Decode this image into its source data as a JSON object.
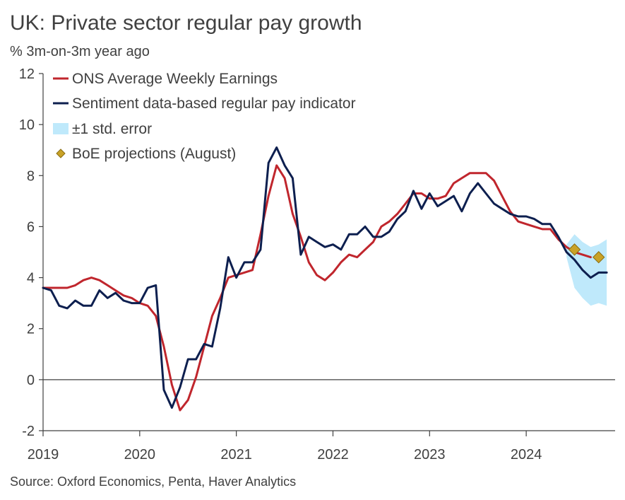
{
  "title": "UK: Private sector regular pay growth",
  "subtitle": "% 3m-on-3m year ago",
  "source": "Source: Oxford Economics, Penta, Haver Analytics",
  "colors": {
    "ons": "#c0262d",
    "sentiment": "#0d1f4f",
    "band": "#bfe9fb",
    "boe": "#c9a227",
    "axis": "#404040"
  },
  "chart_data": {
    "type": "line",
    "xlabel": "",
    "ylabel": "",
    "ylim": [
      -2,
      12
    ],
    "xlim": [
      2019.0,
      2024.92
    ],
    "y_ticks": [
      "-2",
      "0",
      "2",
      "4",
      "6",
      "8",
      "10",
      "12"
    ],
    "x_ticks": [
      "2019",
      "2020",
      "2021",
      "2022",
      "2023",
      "2024"
    ],
    "legend_position": "top-left",
    "legend": [
      "ONS Average Weekly Earnings",
      "Sentiment data-based regular pay indicator",
      "±1 std. error",
      "BoE projections (August)"
    ],
    "series": [
      {
        "name": "ONS Average Weekly Earnings",
        "points": [
          [
            2019.0,
            3.6
          ],
          [
            2019.083,
            3.6
          ],
          [
            2019.167,
            3.6
          ],
          [
            2019.25,
            3.6
          ],
          [
            2019.333,
            3.7
          ],
          [
            2019.417,
            3.9
          ],
          [
            2019.5,
            4.0
          ],
          [
            2019.583,
            3.9
          ],
          [
            2019.667,
            3.7
          ],
          [
            2019.75,
            3.5
          ],
          [
            2019.833,
            3.3
          ],
          [
            2019.917,
            3.2
          ],
          [
            2020.0,
            3.0
          ],
          [
            2020.083,
            2.9
          ],
          [
            2020.167,
            2.5
          ],
          [
            2020.25,
            1.3
          ],
          [
            2020.333,
            -0.2
          ],
          [
            2020.417,
            -1.2
          ],
          [
            2020.5,
            -0.8
          ],
          [
            2020.583,
            0.1
          ],
          [
            2020.667,
            1.3
          ],
          [
            2020.75,
            2.5
          ],
          [
            2020.833,
            3.2
          ],
          [
            2020.917,
            4.0
          ],
          [
            2021.0,
            4.1
          ],
          [
            2021.083,
            4.2
          ],
          [
            2021.167,
            4.3
          ],
          [
            2021.25,
            5.7
          ],
          [
            2021.333,
            7.2
          ],
          [
            2021.417,
            8.4
          ],
          [
            2021.5,
            7.9
          ],
          [
            2021.583,
            6.5
          ],
          [
            2021.667,
            5.6
          ],
          [
            2021.75,
            4.6
          ],
          [
            2021.833,
            4.1
          ],
          [
            2021.917,
            3.9
          ],
          [
            2022.0,
            4.2
          ],
          [
            2022.083,
            4.6
          ],
          [
            2022.167,
            4.9
          ],
          [
            2022.25,
            4.8
          ],
          [
            2022.333,
            5.1
          ],
          [
            2022.417,
            5.4
          ],
          [
            2022.5,
            6.0
          ],
          [
            2022.583,
            6.2
          ],
          [
            2022.667,
            6.5
          ],
          [
            2022.75,
            6.9
          ],
          [
            2022.833,
            7.3
          ],
          [
            2022.917,
            7.3
          ],
          [
            2023.0,
            7.1
          ],
          [
            2023.083,
            7.1
          ],
          [
            2023.167,
            7.2
          ],
          [
            2023.25,
            7.7
          ],
          [
            2023.333,
            7.9
          ],
          [
            2023.417,
            8.1
          ],
          [
            2023.5,
            8.1
          ],
          [
            2023.583,
            8.1
          ],
          [
            2023.667,
            7.8
          ],
          [
            2023.75,
            7.2
          ],
          [
            2023.833,
            6.6
          ],
          [
            2023.917,
            6.2
          ],
          [
            2024.0,
            6.1
          ],
          [
            2024.083,
            6.0
          ],
          [
            2024.167,
            5.9
          ],
          [
            2024.25,
            5.9
          ],
          [
            2024.333,
            5.5
          ],
          [
            2024.417,
            5.2
          ],
          [
            2024.5,
            5.0
          ],
          [
            2024.583,
            4.9
          ],
          [
            2024.667,
            4.8
          ]
        ]
      },
      {
        "name": "Sentiment data-based regular pay indicator",
        "points": [
          [
            2019.0,
            3.6
          ],
          [
            2019.083,
            3.5
          ],
          [
            2019.167,
            2.9
          ],
          [
            2019.25,
            2.8
          ],
          [
            2019.333,
            3.1
          ],
          [
            2019.417,
            2.9
          ],
          [
            2019.5,
            2.9
          ],
          [
            2019.583,
            3.5
          ],
          [
            2019.667,
            3.2
          ],
          [
            2019.75,
            3.4
          ],
          [
            2019.833,
            3.1
          ],
          [
            2019.917,
            3.0
          ],
          [
            2020.0,
            3.0
          ],
          [
            2020.083,
            3.6
          ],
          [
            2020.167,
            3.7
          ],
          [
            2020.25,
            -0.4
          ],
          [
            2020.333,
            -1.1
          ],
          [
            2020.417,
            -0.3
          ],
          [
            2020.5,
            0.8
          ],
          [
            2020.583,
            0.8
          ],
          [
            2020.667,
            1.4
          ],
          [
            2020.75,
            1.3
          ],
          [
            2020.833,
            2.8
          ],
          [
            2020.917,
            4.8
          ],
          [
            2021.0,
            4.0
          ],
          [
            2021.083,
            4.6
          ],
          [
            2021.167,
            4.6
          ],
          [
            2021.25,
            5.1
          ],
          [
            2021.333,
            8.5
          ],
          [
            2021.417,
            9.1
          ],
          [
            2021.5,
            8.4
          ],
          [
            2021.583,
            7.9
          ],
          [
            2021.667,
            4.9
          ],
          [
            2021.75,
            5.6
          ],
          [
            2021.833,
            5.4
          ],
          [
            2021.917,
            5.2
          ],
          [
            2022.0,
            5.3
          ],
          [
            2022.083,
            5.1
          ],
          [
            2022.167,
            5.7
          ],
          [
            2022.25,
            5.7
          ],
          [
            2022.333,
            6.0
          ],
          [
            2022.417,
            5.6
          ],
          [
            2022.5,
            5.6
          ],
          [
            2022.583,
            5.8
          ],
          [
            2022.667,
            6.3
          ],
          [
            2022.75,
            6.6
          ],
          [
            2022.833,
            7.4
          ],
          [
            2022.917,
            6.7
          ],
          [
            2023.0,
            7.3
          ],
          [
            2023.083,
            6.8
          ],
          [
            2023.167,
            7.0
          ],
          [
            2023.25,
            7.2
          ],
          [
            2023.333,
            6.6
          ],
          [
            2023.417,
            7.3
          ],
          [
            2023.5,
            7.7
          ],
          [
            2023.583,
            7.3
          ],
          [
            2023.667,
            6.9
          ],
          [
            2023.75,
            6.7
          ],
          [
            2023.833,
            6.5
          ],
          [
            2023.917,
            6.4
          ],
          [
            2024.0,
            6.4
          ],
          [
            2024.083,
            6.3
          ],
          [
            2024.167,
            6.1
          ],
          [
            2024.25,
            6.1
          ],
          [
            2024.333,
            5.6
          ],
          [
            2024.417,
            5.0
          ],
          [
            2024.5,
            4.7
          ],
          [
            2024.583,
            4.3
          ],
          [
            2024.667,
            4.0
          ],
          [
            2024.75,
            4.2
          ],
          [
            2024.833,
            4.2
          ]
        ]
      }
    ],
    "std_error_band": [
      [
        2024.417,
        4.8,
        5.3
      ],
      [
        2024.5,
        3.6,
        5.7
      ],
      [
        2024.583,
        3.2,
        5.4
      ],
      [
        2024.667,
        2.9,
        5.2
      ],
      [
        2024.75,
        3.0,
        5.3
      ],
      [
        2024.833,
        2.9,
        5.5
      ]
    ],
    "boe_projections": [
      [
        2024.5,
        5.1
      ],
      [
        2024.75,
        4.8
      ]
    ]
  }
}
